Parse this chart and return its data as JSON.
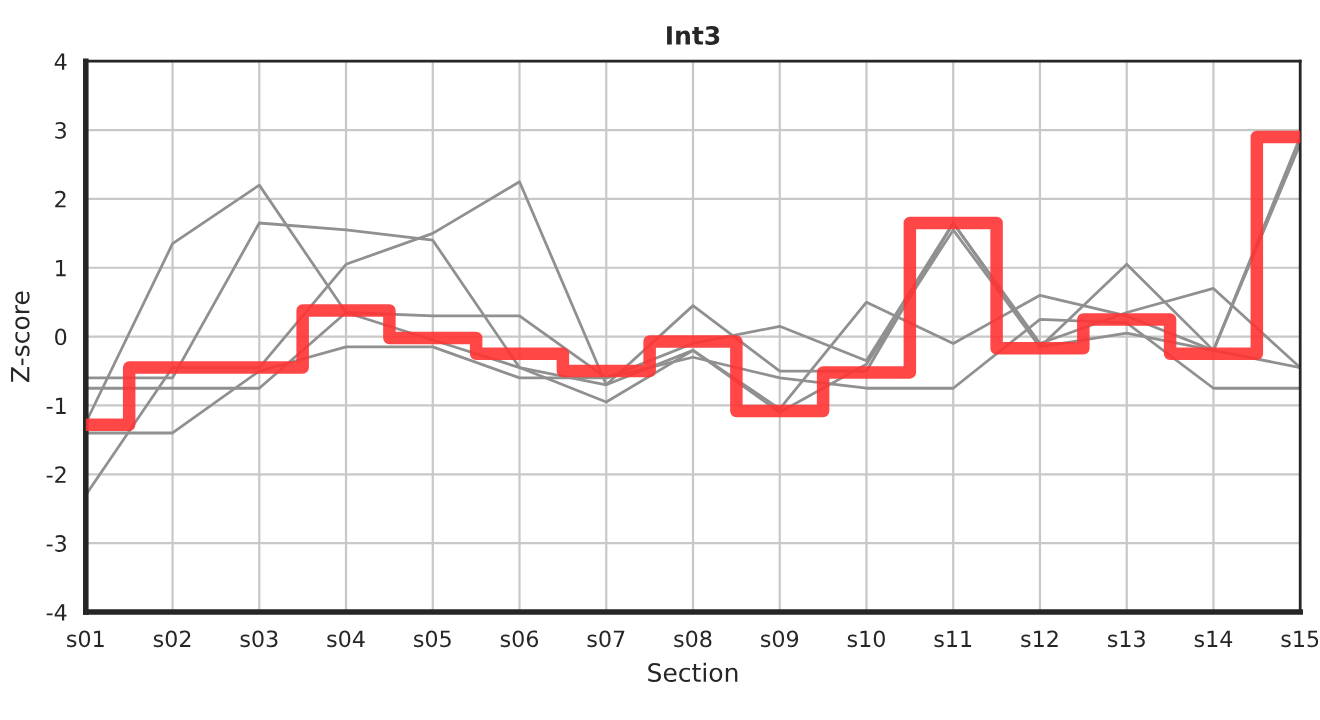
{
  "chart_data": {
    "type": "line",
    "title": "Int3",
    "xlabel": "Section",
    "ylabel": "Z-score",
    "categories": [
      "s01",
      "s02",
      "s03",
      "s04",
      "s05",
      "s06",
      "s07",
      "s08",
      "s09",
      "s10",
      "s11",
      "s12",
      "s13",
      "s14",
      "s15"
    ],
    "series": [
      {
        "color": "#909090",
        "values": [
          -1.25,
          1.35,
          2.2,
          0.35,
          -0.05,
          -0.45,
          -0.7,
          0.45,
          -0.5,
          -0.5,
          1.65,
          -0.1,
          0.35,
          0.7,
          -0.45
        ]
      },
      {
        "color": "#909090",
        "values": [
          -2.3,
          -0.45,
          -0.45,
          1.05,
          1.5,
          2.25,
          -0.7,
          -0.2,
          -1.05,
          0.5,
          -0.1,
          0.6,
          0.3,
          -0.2,
          -0.45
        ]
      },
      {
        "color": "#909090",
        "values": [
          -0.75,
          -0.75,
          -0.75,
          0.35,
          0.3,
          0.3,
          -0.6,
          -0.1,
          0.15,
          -0.35,
          1.65,
          -0.15,
          0.05,
          -0.2,
          2.9
        ]
      },
      {
        "color": "#909090",
        "values": [
          -0.6,
          -0.6,
          1.65,
          1.55,
          1.4,
          -0.45,
          -0.95,
          -0.2,
          -1.1,
          -0.4,
          1.55,
          -0.15,
          1.05,
          -0.2,
          2.8
        ]
      },
      {
        "color": "#909090",
        "values": [
          -1.4,
          -1.4,
          -0.5,
          -0.15,
          -0.15,
          -0.6,
          -0.6,
          -0.3,
          -0.6,
          -0.75,
          -0.75,
          0.25,
          0.2,
          -0.75,
          -0.75
        ]
      },
      {
        "type": "step",
        "color": "#ff3333",
        "values": [
          -1.28,
          -0.45,
          -0.45,
          0.38,
          -0.02,
          -0.25,
          -0.5,
          -0.07,
          -1.08,
          -0.52,
          1.65,
          -0.17,
          0.25,
          -0.25,
          2.9
        ]
      }
    ],
    "ylim": [
      -4,
      4
    ],
    "yticks": [
      -4,
      -3,
      -2,
      -1,
      0,
      1,
      2,
      3,
      4
    ],
    "grid": true
  }
}
